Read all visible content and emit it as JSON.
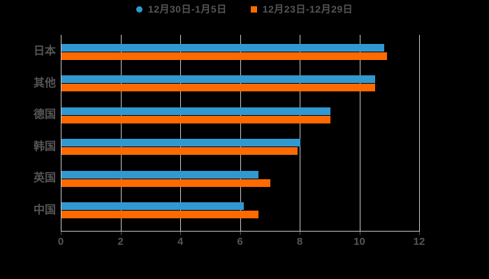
{
  "legend": {
    "items": [
      {
        "label": "12月30日-1月5日",
        "marker": "circle",
        "color": "#3199D1"
      },
      {
        "label": "12月23日-12月29日",
        "marker": "square",
        "color": "#FF6A00"
      }
    ]
  },
  "chart_data": {
    "type": "bar",
    "orientation": "horizontal",
    "title": "",
    "xlabel": "",
    "ylabel": "",
    "categories": [
      "日本",
      "其他",
      "德国",
      "韩国",
      "英国",
      "中国"
    ],
    "series": [
      {
        "name": "12月30日-1月5日",
        "color": "#3199D1",
        "values": [
          10.8,
          10.5,
          9.0,
          8.0,
          6.6,
          6.1
        ]
      },
      {
        "name": "12月23日-12月29日",
        "color": "#FF6A00",
        "values": [
          10.9,
          10.5,
          9.0,
          7.9,
          7.0,
          6.6
        ]
      }
    ],
    "xlim": [
      0,
      12
    ],
    "x_ticks": [
      0,
      2,
      4,
      6,
      8,
      10,
      12
    ],
    "x_tick_labels": [
      "0",
      "2",
      "4",
      "6",
      "8",
      "10",
      "12"
    ],
    "grid": true,
    "legend_position": "top-center"
  },
  "colors": {
    "background": "#000000",
    "grid": "#C9C9C9",
    "axis": "#C9C9C9",
    "tick": "#555555",
    "text": "#555555"
  }
}
